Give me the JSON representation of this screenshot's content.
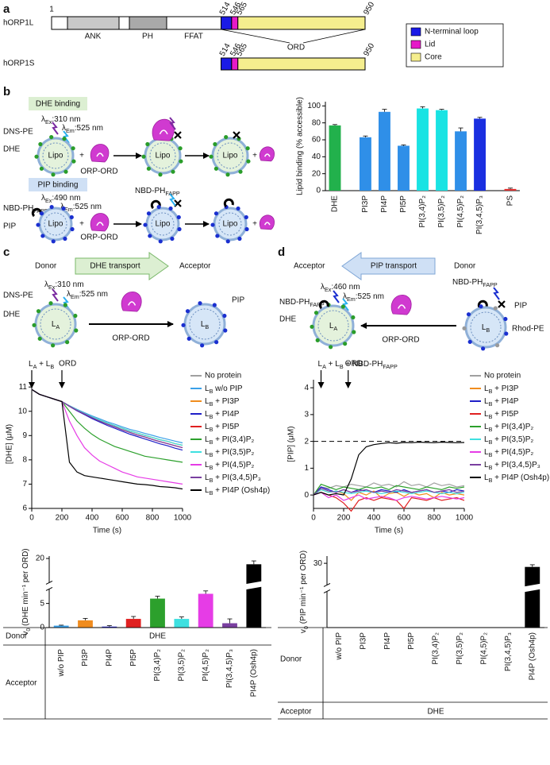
{
  "panel_labels": [
    "a",
    "b",
    "c",
    "d"
  ],
  "panel_a": {
    "proteins": [
      "hORP1L",
      "hORP1S"
    ],
    "residues": [
      1,
      514,
      546,
      565,
      950
    ],
    "domains": [
      "ANK",
      "PH",
      "FFAT"
    ],
    "ord": "ORD",
    "legend": [
      {
        "name": "N-terminal loop",
        "color": "#1a1ae6"
      },
      {
        "name": "Lid",
        "color": "#e619c8"
      },
      {
        "name": "Core",
        "color": "#f5ee8e"
      }
    ]
  },
  "scheme_b": {
    "dhe_title": "DHE binding",
    "pip_title": "PIP binding",
    "dns_pe": "DNS-PE",
    "dhe": "DHE",
    "ex1": [
      "λ",
      "Ex",
      ":310 nm"
    ],
    "em1": [
      "λ",
      "Em",
      ":525 nm"
    ],
    "lipo": "Lipo",
    "plus": "+",
    "orp_ord": "ORP-ORD",
    "nbd_ph": [
      "NBD-PH",
      "FAPP"
    ],
    "ex2": [
      "λ",
      "Ex",
      ":490 nm"
    ],
    "em2": [
      "λ",
      "Em",
      ":525 nm"
    ],
    "pip": "PIP",
    "nbd_ph2": [
      "NBD-PH",
      "FAPP"
    ]
  },
  "scheme_c": {
    "donor": "Donor",
    "transport": "DHE transport",
    "acceptor": "Acceptor",
    "dns_pe": "DNS-PE",
    "ex": [
      "λ",
      "Ex",
      ":310 nm"
    ],
    "em": [
      "λ",
      "Em",
      ":525 nm"
    ],
    "dhe": "DHE",
    "la": [
      "L",
      "A"
    ],
    "lb": [
      "L",
      "B"
    ],
    "pip": "PIP",
    "orp_ord": "ORP-ORD"
  },
  "scheme_d": {
    "acceptor": "Acceptor",
    "transport": "PIP transport",
    "donor": "Donor",
    "nbd_ph": [
      "NBD-PH",
      "FAPP"
    ],
    "ex": [
      "λ",
      "Ex",
      ":460 nm"
    ],
    "em": [
      "λ",
      "Em",
      ":525 nm"
    ],
    "dhe": "DHE",
    "la": [
      "L",
      "A"
    ],
    "nbd_ph2": [
      "NBD-PH",
      "FAPP"
    ],
    "pip": "PIP",
    "rhod_pe": "Rhod-PE",
    "lb": [
      "L",
      "B"
    ],
    "orp_ord": "ORP-ORD"
  },
  "chart_data": [
    {
      "type": "bar",
      "ylabel": "Lipid binding (% accessible)",
      "categories": [
        "DHE",
        "PI3P",
        "PI4P",
        "PI5P",
        "PI(3,4)P₂",
        "PI(3,5)P₂",
        "PI(4,5)P₂",
        "PI(3,4,5)P₃",
        "PS"
      ],
      "values": [
        77,
        63,
        93,
        53,
        97,
        95,
        70,
        85,
        2
      ],
      "errors": [
        1,
        1.5,
        3,
        1,
        2,
        1,
        4,
        1.5,
        1
      ],
      "colors": [
        "#22b14c",
        "#2f8fe8",
        "#2f8fe8",
        "#2f8fe8",
        "#19e3e3",
        "#19e3e3",
        "#2f8fe8",
        "#1a2fe0",
        "#e03030"
      ],
      "ylim": [
        0,
        105
      ],
      "yticks": [
        0,
        20,
        40,
        60,
        80,
        100
      ]
    },
    {
      "type": "line",
      "xlabel": "Time (s)",
      "ylabel": "[DHE] (μM)",
      "x": [
        0,
        50,
        100,
        150,
        200,
        250,
        300,
        350,
        400,
        450,
        500,
        550,
        600,
        650,
        700,
        750,
        800,
        850,
        900,
        950,
        1000
      ],
      "xlim": [
        0,
        1000
      ],
      "xticks": [
        0,
        200,
        400,
        600,
        800,
        1000
      ],
      "ylim": [
        6,
        11.3
      ],
      "yticks": [
        6,
        7,
        8,
        9,
        10,
        11
      ],
      "annotations": [
        {
          "text": [
            "L",
            "A",
            " + L",
            "B"
          ],
          "x": 0
        },
        {
          "text": "ORD",
          "x": 200
        }
      ],
      "series": [
        {
          "name": "No protein",
          "color": "#a0a0a0",
          "values": [
            10.9,
            10.7,
            10.6,
            10.5,
            10.4,
            10.22,
            10.06,
            9.91,
            9.77,
            9.64,
            9.52,
            9.41,
            9.3,
            9.19,
            9.1,
            9.01,
            8.92,
            8.83,
            8.76,
            8.67,
            8.6
          ]
        },
        {
          "name": [
            "L",
            "B",
            " w/o PIP"
          ],
          "color": "#3aa0e8",
          "values": [
            10.9,
            10.7,
            10.6,
            10.5,
            10.4,
            10.23,
            10.08,
            9.94,
            9.81,
            9.69,
            9.57,
            9.47,
            9.36,
            9.26,
            9.18,
            9.09,
            9.01,
            8.92,
            8.85,
            8.77,
            8.7
          ]
        },
        {
          "name": [
            "L",
            "B",
            " + PI3P"
          ],
          "color": "#f08c1e",
          "values": [
            10.9,
            10.7,
            10.6,
            10.5,
            10.4,
            10.22,
            10.06,
            9.91,
            9.77,
            9.64,
            9.52,
            9.41,
            9.3,
            9.19,
            9.1,
            9.01,
            8.92,
            8.83,
            8.76,
            8.67,
            8.6
          ]
        },
        {
          "name": [
            "L",
            "B",
            " + PI4P"
          ],
          "color": "#1f1fc8",
          "values": [
            10.9,
            10.7,
            10.6,
            10.5,
            10.4,
            10.2,
            10.02,
            9.86,
            9.7,
            9.56,
            9.42,
            9.3,
            9.18,
            9.06,
            8.96,
            8.86,
            8.76,
            8.66,
            8.58,
            8.48,
            8.4
          ]
        },
        {
          "name": [
            "L",
            "B",
            " + PI5P"
          ],
          "color": "#e02020",
          "values": [
            10.9,
            10.7,
            10.6,
            10.5,
            10.4,
            10.21,
            10.04,
            9.89,
            9.74,
            9.6,
            9.47,
            9.36,
            9.24,
            9.13,
            9.03,
            8.94,
            8.84,
            8.75,
            8.67,
            8.58,
            8.5
          ]
        },
        {
          "name": [
            "L",
            "B",
            " + PI(3,4)P₂"
          ],
          "color": "#2ca02c",
          "values": [
            10.9,
            10.7,
            10.6,
            10.5,
            10.4,
            10.0,
            9.6,
            9.3,
            9.05,
            8.85,
            8.7,
            8.55,
            8.45,
            8.35,
            8.25,
            8.15,
            8.1,
            8.05,
            8.0,
            7.95,
            7.9
          ]
        },
        {
          "name": [
            "L",
            "B",
            " + PI(3,5)P₂"
          ],
          "color": "#3ee0e0",
          "values": [
            10.9,
            10.7,
            10.6,
            10.5,
            10.4,
            10.22,
            10.06,
            9.91,
            9.77,
            9.64,
            9.52,
            9.41,
            9.3,
            9.19,
            9.1,
            9.01,
            8.92,
            8.83,
            8.76,
            8.67,
            8.6
          ]
        },
        {
          "name": [
            "L",
            "B",
            " + PI(4,5)P₂"
          ],
          "color": "#e63ce6",
          "values": [
            10.9,
            10.7,
            10.6,
            10.5,
            10.4,
            9.6,
            9.0,
            8.5,
            8.2,
            7.95,
            7.8,
            7.65,
            7.5,
            7.4,
            7.3,
            7.25,
            7.2,
            7.15,
            7.1,
            7.05,
            7.0
          ]
        },
        {
          "name": [
            "L",
            "B",
            " + PI(3,4,5)P₃"
          ],
          "color": "#7a3fa0",
          "values": [
            10.9,
            10.7,
            10.6,
            10.5,
            10.4,
            10.21,
            10.04,
            9.89,
            9.74,
            9.6,
            9.47,
            9.36,
            9.24,
            9.13,
            9.03,
            8.94,
            8.84,
            8.75,
            8.67,
            8.58,
            8.5
          ]
        },
        {
          "name": [
            "L",
            "B",
            " + PI4P (Osh4p)"
          ],
          "color": "#000000",
          "values": [
            10.9,
            10.7,
            10.6,
            10.5,
            10.4,
            7.9,
            7.5,
            7.35,
            7.3,
            7.25,
            7.2,
            7.15,
            7.1,
            7.05,
            7.0,
            6.98,
            6.95,
            6.9,
            6.88,
            6.85,
            6.8
          ]
        }
      ]
    },
    {
      "type": "bar",
      "ylabel": [
        "v",
        "0",
        " (DHE min⁻¹ per ORD)"
      ],
      "categories": [
        "w/o PIP",
        "PI3P",
        "PI4P",
        "PI5P",
        "PI(3,4)P₂",
        "PI(3,5)P₂",
        "PI(4,5)P₂",
        "PI(3,4,5)P₃",
        "PI4P (Osh4p)"
      ],
      "values": [
        0.4,
        1.5,
        0.2,
        1.8,
        6.0,
        1.8,
        7.0,
        0.9,
        18.8
      ],
      "errors": [
        0.1,
        0.4,
        0.2,
        0.5,
        0.5,
        0.4,
        0.6,
        0.9,
        0.7
      ],
      "colors": [
        "#3aa0e8",
        "#f08c1e",
        "#1f1fc8",
        "#e02020",
        "#2ca02c",
        "#3ee0e0",
        "#e63ce6",
        "#7a3fa0",
        "#000000"
      ],
      "ylim": [
        0,
        20.5
      ],
      "ybreak": [
        8,
        15
      ],
      "yticks": [
        0,
        5,
        20
      ],
      "table": {
        "row_labels": [
          "Donor",
          "Acceptor"
        ],
        "donor": "DHE"
      }
    },
    {
      "type": "line",
      "xlabel": "Time (s)",
      "ylabel": "[PIP] (μM)",
      "x": [
        0,
        50,
        100,
        150,
        200,
        250,
        300,
        350,
        400,
        450,
        500,
        550,
        600,
        650,
        700,
        750,
        800,
        850,
        900,
        950,
        1000
      ],
      "xlim": [
        0,
        1000
      ],
      "xticks": [
        0,
        200,
        400,
        600,
        800,
        1000
      ],
      "ylim": [
        -0.5,
        4.3
      ],
      "yticks": [
        0,
        1,
        2,
        3,
        4
      ],
      "reference_line": 2,
      "annotations": [
        {
          "text": [
            "L",
            "A",
            " + L",
            "B",
            " + NBD-PH",
            "FAPP"
          ],
          "x": 50
        },
        {
          "text": "ORD",
          "x": 230
        }
      ],
      "series": [
        {
          "name": "No protein",
          "color": "#a0a0a0",
          "values": [
            0,
            0.3,
            0.25,
            0.35,
            0.3,
            0.4,
            0.35,
            0.3,
            0.45,
            0.35,
            0.4,
            0.3,
            0.5,
            0.35,
            0.4,
            0.3,
            0.45,
            0.35,
            0.4,
            0.3,
            0.35
          ]
        },
        {
          "name": [
            "L",
            "B",
            " + PI3P"
          ],
          "color": "#f08c1e",
          "values": [
            0,
            0.2,
            0.1,
            0.15,
            0.05,
            -0.2,
            0.1,
            0,
            0.15,
            -0.1,
            0.05,
            0.1,
            -0.05,
            0.1,
            0,
            0.05,
            -0.1,
            0.1,
            0,
            0.05,
            0
          ]
        },
        {
          "name": [
            "L",
            "B",
            " + PI4P"
          ],
          "color": "#1f1fc8",
          "values": [
            0,
            0.3,
            0.2,
            0.1,
            0.2,
            0.1,
            0.2,
            0.15,
            0.1,
            0.2,
            0.15,
            0.1,
            0.2,
            0.1,
            0.15,
            0.2,
            0.1,
            0.15,
            0.1,
            0.2,
            0.15
          ]
        },
        {
          "name": [
            "L",
            "B",
            " + PI5P"
          ],
          "color": "#e02020",
          "values": [
            0,
            0.1,
            0,
            -0.1,
            -0.3,
            -0.6,
            -0.2,
            -0.1,
            -0.2,
            -0.1,
            -0.15,
            -0.2,
            -0.5,
            -0.1,
            -0.15,
            -0.2,
            -0.1,
            -0.2,
            -0.15,
            -0.1,
            -0.2
          ]
        },
        {
          "name": [
            "L",
            "B",
            " + PI(3,4)P₂"
          ],
          "color": "#2ca02c",
          "values": [
            0,
            0.4,
            0.3,
            0.2,
            0.3,
            0.25,
            0.2,
            0.3,
            0.25,
            0.3,
            0.2,
            0.35,
            0.3,
            0.25,
            0.2,
            0.3,
            0.25,
            0.2,
            0.3,
            0.25,
            0.3
          ]
        },
        {
          "name": [
            "L",
            "B",
            " + PI(3,5)P₂"
          ],
          "color": "#3ee0e0",
          "values": [
            0,
            0.2,
            0.1,
            0.15,
            0.1,
            0.05,
            0.1,
            0.15,
            0.1,
            0.05,
            0.1,
            0.15,
            0.1,
            0.05,
            0.1,
            0.15,
            0.1,
            0.05,
            0.1,
            0.05,
            0.1
          ]
        },
        {
          "name": [
            "L",
            "B",
            " + PI(4,5)P₂"
          ],
          "color": "#e63ce6",
          "values": [
            0,
            0.1,
            -0.1,
            0,
            -0.2,
            -0.1,
            0,
            -0.15,
            -0.1,
            -0.05,
            -0.1,
            -0.2,
            -0.1,
            -0.05,
            -0.1,
            -0.15,
            -0.1,
            -0.05,
            -0.1,
            -0.15,
            -0.1
          ]
        },
        {
          "name": [
            "L",
            "B",
            " + PI(3,4,5)P₃"
          ],
          "color": "#7a3fa0",
          "values": [
            0,
            0.25,
            0.15,
            0.1,
            0.2,
            0.1,
            0.15,
            0.2,
            0.1,
            0.15,
            0.1,
            0.2,
            0.15,
            0.1,
            0.15,
            0.2,
            0.1,
            0.15,
            0.2,
            0.1,
            0.15
          ]
        },
        {
          "name": [
            "L",
            "B",
            " + PI4P (Osh4p)"
          ],
          "color": "#000000",
          "values": [
            0,
            0.1,
            0,
            0.05,
            0,
            0.6,
            1.5,
            1.8,
            1.88,
            1.92,
            1.95,
            1.93,
            1.96,
            1.95,
            1.97,
            1.96,
            1.95,
            1.97,
            1.96,
            1.95,
            1.96
          ]
        }
      ]
    },
    {
      "type": "bar",
      "ylabel": [
        "v",
        "0",
        " (PIP min⁻¹ per ORD)"
      ],
      "categories": [
        "w/o PIP",
        "PI3P",
        "PI4P",
        "PI5P",
        "PI(3,4)P₂",
        "PI(3,5)P₂",
        "PI(4,5)P₂",
        "PI(3,4,5)P₃",
        "PI4P (Osh4p)"
      ],
      "values": [
        0,
        0,
        0,
        0,
        0,
        0,
        0,
        0,
        29.5
      ],
      "errors": [
        0,
        0,
        0,
        0,
        0,
        0,
        0,
        0,
        0.3
      ],
      "colors": [
        "#000000",
        "#000000",
        "#000000",
        "#000000",
        "#000000",
        "#000000",
        "#000000",
        "#000000",
        "#000000"
      ],
      "ylim": [
        0,
        31
      ],
      "ybreak": [
        5,
        27
      ],
      "yticks": [
        30
      ],
      "table": {
        "row_labels": [
          "Donor",
          "Acceptor"
        ],
        "acceptor": "DHE"
      }
    }
  ]
}
